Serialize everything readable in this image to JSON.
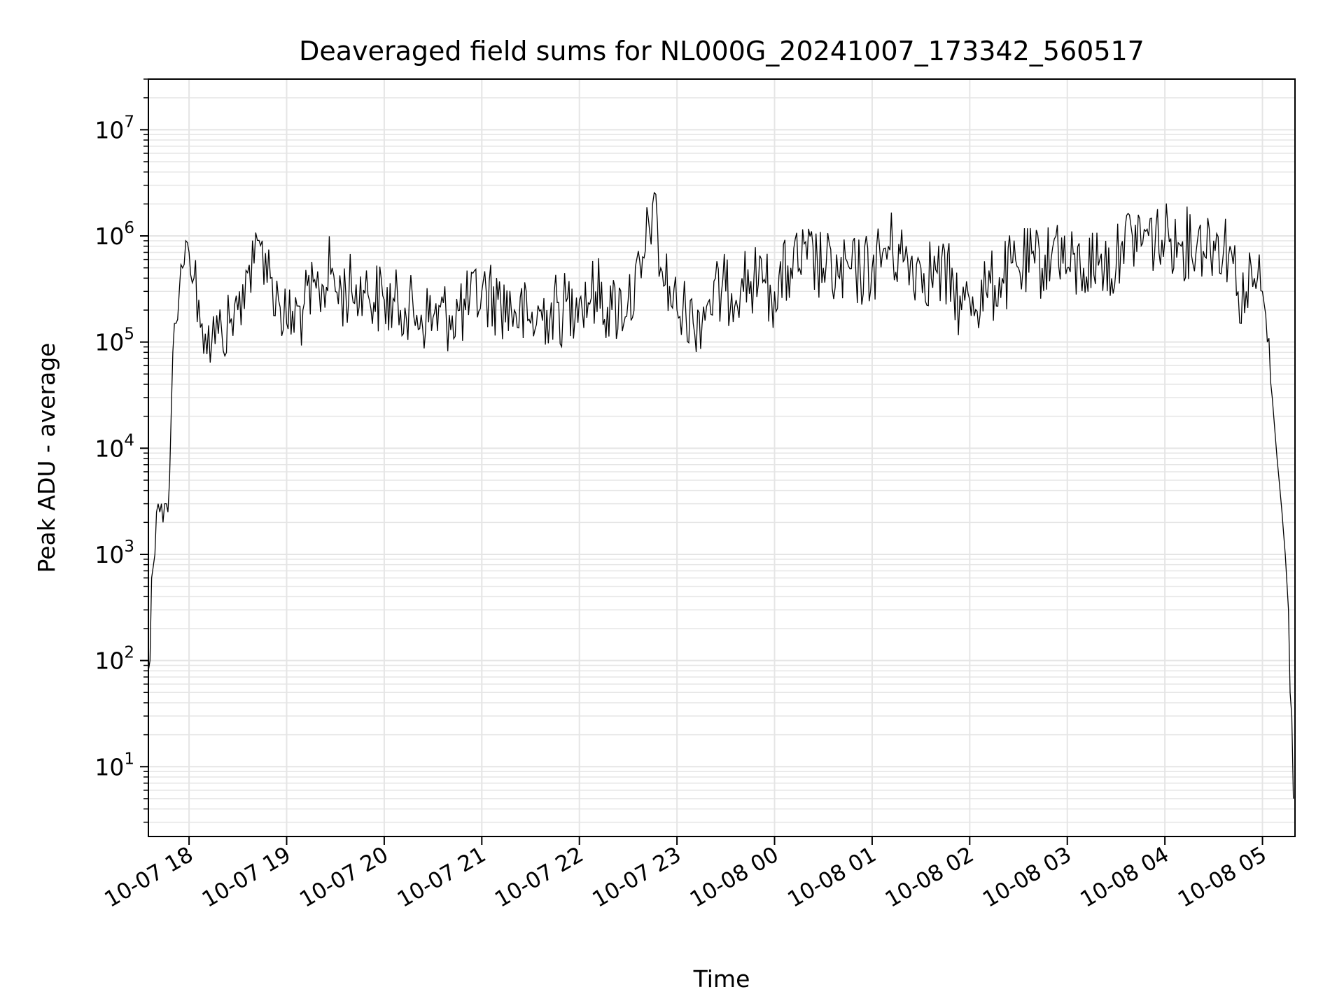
{
  "chart_data": {
    "type": "line",
    "title": "Deaveraged field sums for NL000G_20241007_173342_560517",
    "xlabel": "Time",
    "ylabel": "Peak ADU - average",
    "yscale": "log",
    "ylim": [
      2.2,
      30000000
    ],
    "xlim": [
      "2024-10-07 17:35",
      "2024-10-08 05:20"
    ],
    "x_ticks": [
      {
        "t": "2024-10-07 18:00",
        "label": "10-07 18"
      },
      {
        "t": "2024-10-07 19:00",
        "label": "10-07 19"
      },
      {
        "t": "2024-10-07 20:00",
        "label": "10-07 20"
      },
      {
        "t": "2024-10-07 21:00",
        "label": "10-07 21"
      },
      {
        "t": "2024-10-07 22:00",
        "label": "10-07 22"
      },
      {
        "t": "2024-10-07 23:00",
        "label": "10-07 23"
      },
      {
        "t": "2024-10-08 00:00",
        "label": "10-08 00"
      },
      {
        "t": "2024-10-08 01:00",
        "label": "10-08 01"
      },
      {
        "t": "2024-10-08 02:00",
        "label": "10-08 02"
      },
      {
        "t": "2024-10-08 03:00",
        "label": "10-08 03"
      },
      {
        "t": "2024-10-08 04:00",
        "label": "10-08 04"
      },
      {
        "t": "2024-10-08 05:00",
        "label": "10-08 05"
      }
    ],
    "y_ticks": [
      {
        "v": 10,
        "base": "10",
        "exp": "1"
      },
      {
        "v": 100,
        "base": "10",
        "exp": "2"
      },
      {
        "v": 1000,
        "base": "10",
        "exp": "3"
      },
      {
        "v": 10000,
        "base": "10",
        "exp": "4"
      },
      {
        "v": 100000,
        "base": "10",
        "exp": "5"
      },
      {
        "v": 1000000,
        "base": "10",
        "exp": "6"
      },
      {
        "v": 10000000,
        "base": "10",
        "exp": "7"
      }
    ],
    "grid": true,
    "line_color": "#000000",
    "grid_color": "#e5e5e5",
    "series": [
      {
        "x": [
          "2024-10-07 17:35",
          "2024-10-07 17:36",
          "2024-10-07 17:37",
          "2024-10-07 17:39",
          "2024-10-07 17:40",
          "2024-10-07 17:41",
          "2024-10-07 17:42",
          "2024-10-07 17:43",
          "2024-10-07 17:44",
          "2024-10-07 17:45",
          "2024-10-07 17:46",
          "2024-10-07 17:47",
          "2024-10-07 17:48",
          "2024-10-07 17:49",
          "2024-10-07 17:50",
          "2024-10-07 17:51",
          "2024-10-07 17:52",
          "2024-10-07 17:54",
          "2024-10-07 17:56",
          "2024-10-07 17:58",
          "2024-10-07 18:00",
          "2024-10-07 18:03",
          "2024-10-07 18:06",
          "2024-10-07 18:08",
          "2024-10-07 18:10",
          "2024-10-07 18:14",
          "2024-10-07 18:18",
          "2024-10-07 18:20",
          "2024-10-07 18:25",
          "2024-10-07 18:30",
          "2024-10-07 18:33",
          "2024-10-07 18:36",
          "2024-10-07 18:40",
          "2024-10-07 18:45",
          "2024-10-07 18:50",
          "2024-10-07 18:55",
          "2024-10-07 19:00",
          "2024-10-07 19:10",
          "2024-10-07 19:20",
          "2024-10-07 19:28",
          "2024-10-07 19:30",
          "2024-10-07 19:40",
          "2024-10-07 19:50",
          "2024-10-07 20:00",
          "2024-10-07 20:10",
          "2024-10-07 20:20",
          "2024-10-07 20:30",
          "2024-10-07 20:40",
          "2024-10-07 20:50",
          "2024-10-07 21:00",
          "2024-10-07 21:10",
          "2024-10-07 21:20",
          "2024-10-07 21:30",
          "2024-10-07 21:40",
          "2024-10-07 21:50",
          "2024-10-07 22:00",
          "2024-10-07 22:10",
          "2024-10-07 22:20",
          "2024-10-07 22:30",
          "2024-10-07 22:38",
          "2024-10-07 22:45",
          "2024-10-07 22:50",
          "2024-10-07 23:00",
          "2024-10-07 23:10",
          "2024-10-07 23:20",
          "2024-10-07 23:30",
          "2024-10-07 23:40",
          "2024-10-07 23:50",
          "2024-10-08 00:00",
          "2024-10-08 00:10",
          "2024-10-08 00:20",
          "2024-10-08 00:30",
          "2024-10-08 00:40",
          "2024-10-08 00:50",
          "2024-10-08 01:00",
          "2024-10-08 01:10",
          "2024-10-08 01:20",
          "2024-10-08 01:30",
          "2024-10-08 01:40",
          "2024-10-08 01:50",
          "2024-10-08 01:55",
          "2024-10-08 02:00",
          "2024-10-08 02:10",
          "2024-10-08 02:20",
          "2024-10-08 02:30",
          "2024-10-08 02:40",
          "2024-10-08 02:50",
          "2024-10-08 02:53",
          "2024-10-08 03:00",
          "2024-10-08 03:10",
          "2024-10-08 03:20",
          "2024-10-08 03:30",
          "2024-10-08 03:33",
          "2024-10-08 03:40",
          "2024-10-08 03:50",
          "2024-10-08 04:00",
          "2024-10-08 04:10",
          "2024-10-08 04:20",
          "2024-10-08 04:30",
          "2024-10-08 04:40",
          "2024-10-08 04:45",
          "2024-10-08 04:50",
          "2024-10-08 04:55",
          "2024-10-08 05:00",
          "2024-10-08 05:03",
          "2024-10-08 05:06",
          "2024-10-08 05:09",
          "2024-10-08 05:12",
          "2024-10-08 05:14",
          "2024-10-08 05:16",
          "2024-10-08 05:17",
          "2024-10-08 05:18",
          "2024-10-08 05:19"
        ],
        "y": [
          80,
          100,
          600,
          1000,
          2500,
          3000,
          2500,
          3000,
          2000,
          3000,
          3000,
          2500,
          5000,
          20000,
          80000,
          150000,
          150000,
          300000,
          500000,
          900000,
          700000,
          400000,
          250000,
          150000,
          120000,
          100000,
          120000,
          130000,
          150000,
          200000,
          350000,
          450000,
          550000,
          900000,
          400000,
          250000,
          150000,
          200000,
          300000,
          500000,
          300000,
          300000,
          280000,
          250000,
          200000,
          180000,
          170000,
          180000,
          200000,
          300000,
          250000,
          200000,
          150000,
          200000,
          200000,
          250000,
          300000,
          200000,
          250000,
          400000,
          2000000,
          500000,
          200000,
          150000,
          250000,
          300000,
          400000,
          350000,
          300000,
          500000,
          600000,
          500000,
          400000,
          450000,
          500000,
          800000,
          600000,
          500000,
          450000,
          350000,
          200000,
          250000,
          300000,
          400000,
          500000,
          550000,
          600000,
          1000000,
          500000,
          500000,
          600000,
          500000,
          800000,
          1000000,
          1000000,
          900000,
          800000,
          900000,
          900000,
          800000,
          300000,
          300000,
          400000,
          300000,
          100000,
          30000,
          8000,
          2500,
          1000,
          300,
          50,
          30,
          5
        ]
      }
    ]
  }
}
